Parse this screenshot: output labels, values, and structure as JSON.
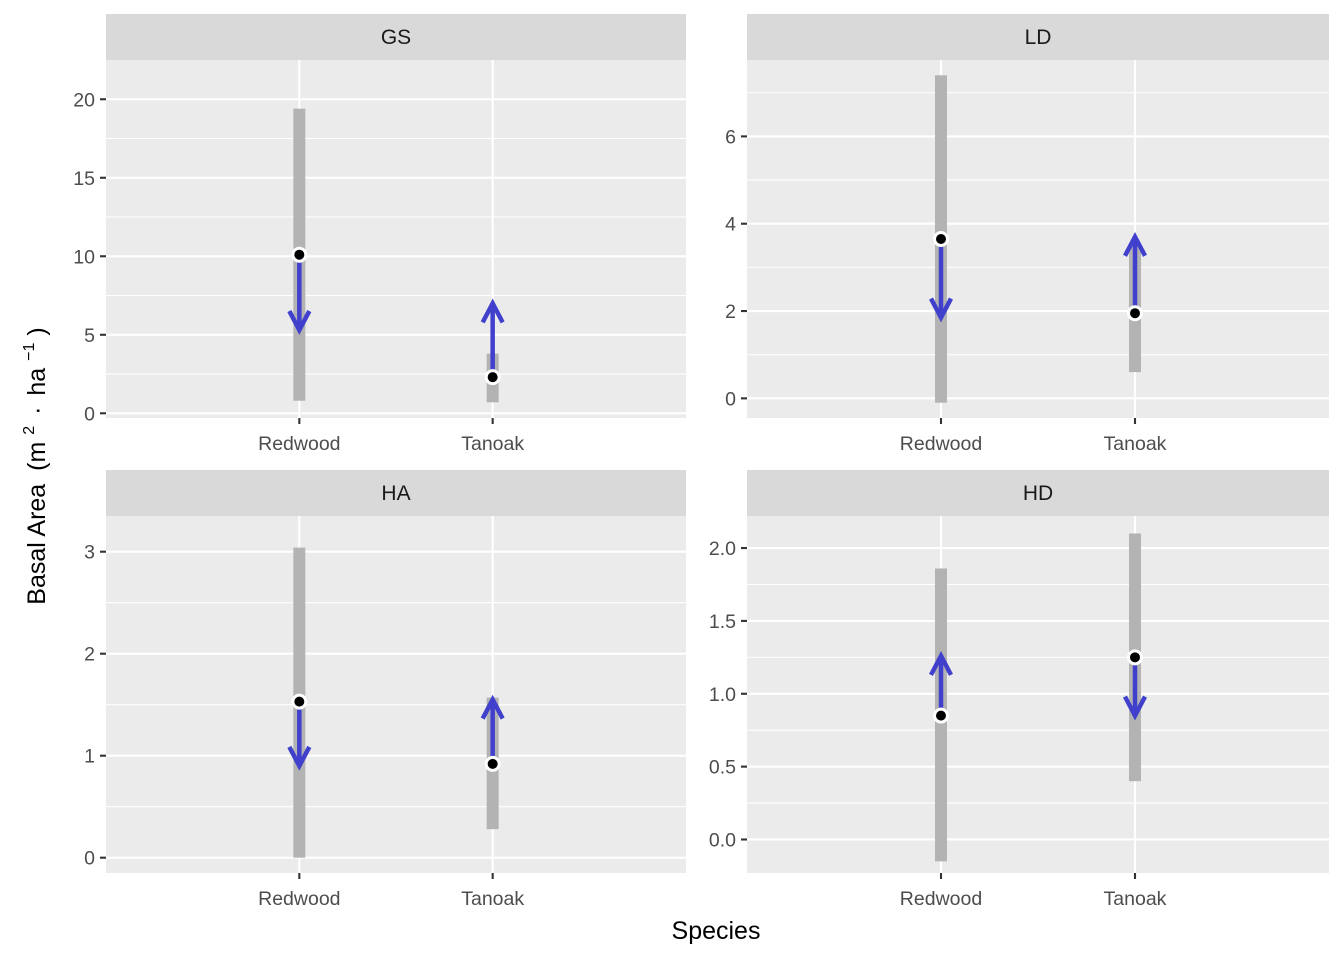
{
  "axis": {
    "xlabel": "Species",
    "ylabel_main": "Basal Area",
    "ylabel_unit_open": "(m",
    "ylabel_unit_exp1": "2",
    "ylabel_unit_dot": "·",
    "ylabel_unit_ha": "ha",
    "ylabel_unit_exp2": "−1",
    "ylabel_unit_close": ")"
  },
  "colors": {
    "panel": "#ebebeb",
    "strip": "#d9d9d9",
    "range_bar": "#b3b3b3",
    "arrow": "#4040cc",
    "point": "#000000"
  },
  "chart_data": [
    {
      "type": "range-arrow",
      "facet": "GS",
      "categories": [
        "Redwood",
        "Tanoak"
      ],
      "ylim": [
        -0.3,
        22.5
      ],
      "yticks": [
        0,
        5,
        10,
        15,
        20
      ],
      "ytick_labels": [
        "0",
        "5",
        "10",
        "15",
        "20"
      ],
      "ranges": [
        [
          0.8,
          19.4
        ],
        [
          0.7,
          3.8
        ]
      ],
      "start": [
        10.1,
        2.3
      ],
      "end": [
        5.3,
        7.0
      ],
      "grid": true
    },
    {
      "type": "range-arrow",
      "facet": "LD",
      "categories": [
        "Redwood",
        "Tanoak"
      ],
      "ylim": [
        -0.45,
        7.75
      ],
      "yticks": [
        0,
        2,
        4,
        6
      ],
      "ytick_labels": [
        "0",
        "2",
        "4",
        "6"
      ],
      "ranges": [
        [
          -0.1,
          7.4
        ],
        [
          0.6,
          3.5
        ]
      ],
      "start": [
        3.65,
        1.95
      ],
      "end": [
        1.85,
        3.7
      ],
      "grid": true
    },
    {
      "type": "range-arrow",
      "facet": "HA",
      "categories": [
        "Redwood",
        "Tanoak"
      ],
      "ylim": [
        -0.15,
        3.35
      ],
      "yticks": [
        0,
        1,
        2,
        3
      ],
      "ytick_labels": [
        "0",
        "1",
        "2",
        "3"
      ],
      "ranges": [
        [
          0.0,
          3.04
        ],
        [
          0.28,
          1.57
        ]
      ],
      "start": [
        1.53,
        0.92
      ],
      "end": [
        0.9,
        1.55
      ],
      "grid": true
    },
    {
      "type": "range-arrow",
      "facet": "HD",
      "categories": [
        "Redwood",
        "Tanoak"
      ],
      "ylim": [
        -0.23,
        2.22
      ],
      "yticks": [
        0,
        0.5,
        1,
        1.5,
        2
      ],
      "ytick_labels": [
        "0.0",
        "0.5",
        "1.0",
        "1.5",
        "2.0"
      ],
      "ranges": [
        [
          -0.15,
          1.86
        ],
        [
          0.4,
          2.1
        ]
      ],
      "start": [
        0.85,
        1.25
      ],
      "end": [
        1.26,
        0.85
      ],
      "grid": true
    }
  ]
}
